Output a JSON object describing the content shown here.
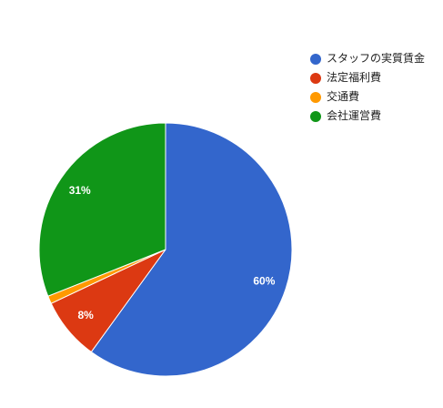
{
  "chart_data": {
    "type": "pie",
    "categories": [
      "スタッフの実質賃金",
      "法定福利費",
      "交通費",
      "会社運営費"
    ],
    "values": [
      60,
      8,
      1,
      31
    ],
    "value_labels": [
      "60%",
      "8%",
      null,
      "31%"
    ],
    "colors": [
      "#3366cc",
      "#dc3912",
      "#ff9900",
      "#109618"
    ],
    "legend": "right"
  }
}
